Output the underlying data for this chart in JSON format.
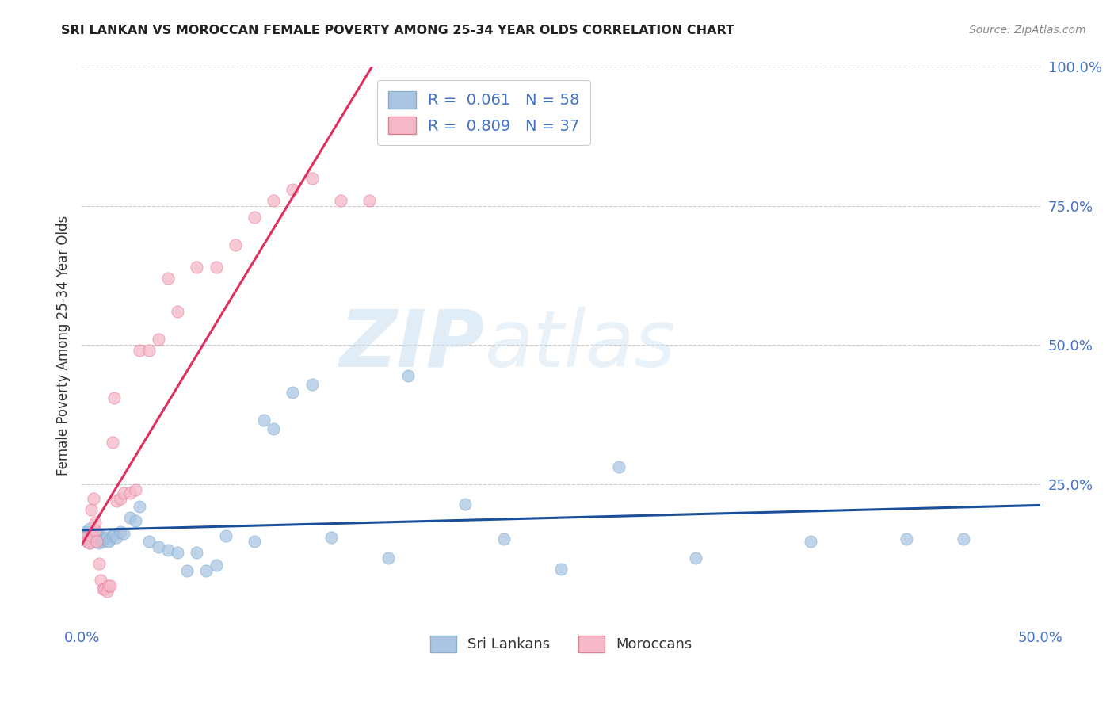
{
  "title": "SRI LANKAN VS MOROCCAN FEMALE POVERTY AMONG 25-34 YEAR OLDS CORRELATION CHART",
  "source": "Source: ZipAtlas.com",
  "ylabel": "Female Poverty Among 25-34 Year Olds",
  "xlim": [
    0.0,
    0.5
  ],
  "ylim": [
    0.0,
    1.0
  ],
  "sri_lankans_color": "#aac5e2",
  "sri_lankans_edge": "#7aaad0",
  "moroccans_color": "#f5b8c8",
  "moroccans_edge": "#e87090",
  "sri_lankans_line_color": "#1a4f9c",
  "moroccans_line_color": "#e03060",
  "background_color": "#ffffff",
  "watermark_zip": "ZIP",
  "watermark_atlas": "atlas",
  "legend_R_sri": "0.061",
  "legend_N_sri": "58",
  "legend_R_mor": "0.809",
  "legend_N_mor": "37",
  "sri_lankans_x": [
    0.001,
    0.002,
    0.002,
    0.003,
    0.003,
    0.003,
    0.004,
    0.004,
    0.005,
    0.005,
    0.006,
    0.006,
    0.007,
    0.007,
    0.008,
    0.008,
    0.009,
    0.009,
    0.01,
    0.01,
    0.011,
    0.012,
    0.013,
    0.014,
    0.015,
    0.016,
    0.017,
    0.018,
    0.02,
    0.022,
    0.025,
    0.028,
    0.03,
    0.035,
    0.04,
    0.045,
    0.05,
    0.055,
    0.06,
    0.065,
    0.07,
    0.075,
    0.09,
    0.095,
    0.1,
    0.11,
    0.12,
    0.13,
    0.16,
    0.17,
    0.2,
    0.22,
    0.25,
    0.28,
    0.32,
    0.38,
    0.43,
    0.46
  ],
  "sri_lankans_y": [
    0.16,
    0.155,
    0.165,
    0.15,
    0.158,
    0.162,
    0.145,
    0.17,
    0.148,
    0.155,
    0.152,
    0.16,
    0.148,
    0.155,
    0.15,
    0.158,
    0.145,
    0.16,
    0.15,
    0.155,
    0.148,
    0.152,
    0.155,
    0.148,
    0.152,
    0.158,
    0.16,
    0.155,
    0.165,
    0.162,
    0.19,
    0.185,
    0.21,
    0.148,
    0.138,
    0.132,
    0.128,
    0.095,
    0.128,
    0.095,
    0.105,
    0.158,
    0.148,
    0.365,
    0.35,
    0.415,
    0.43,
    0.155,
    0.118,
    0.445,
    0.215,
    0.152,
    0.098,
    0.282,
    0.118,
    0.148,
    0.152,
    0.152
  ],
  "moroccans_x": [
    0.002,
    0.003,
    0.004,
    0.005,
    0.005,
    0.006,
    0.007,
    0.007,
    0.008,
    0.009,
    0.01,
    0.011,
    0.012,
    0.013,
    0.014,
    0.015,
    0.016,
    0.017,
    0.018,
    0.02,
    0.022,
    0.025,
    0.028,
    0.03,
    0.035,
    0.04,
    0.045,
    0.05,
    0.06,
    0.07,
    0.08,
    0.09,
    0.1,
    0.11,
    0.12,
    0.135,
    0.15
  ],
  "moroccans_y": [
    0.155,
    0.148,
    0.145,
    0.158,
    0.205,
    0.225,
    0.168,
    0.182,
    0.148,
    0.108,
    0.078,
    0.062,
    0.062,
    0.058,
    0.068,
    0.068,
    0.325,
    0.405,
    0.22,
    0.225,
    0.235,
    0.235,
    0.24,
    0.49,
    0.49,
    0.51,
    0.62,
    0.56,
    0.64,
    0.64,
    0.68,
    0.73,
    0.76,
    0.78,
    0.8,
    0.76,
    0.76
  ]
}
